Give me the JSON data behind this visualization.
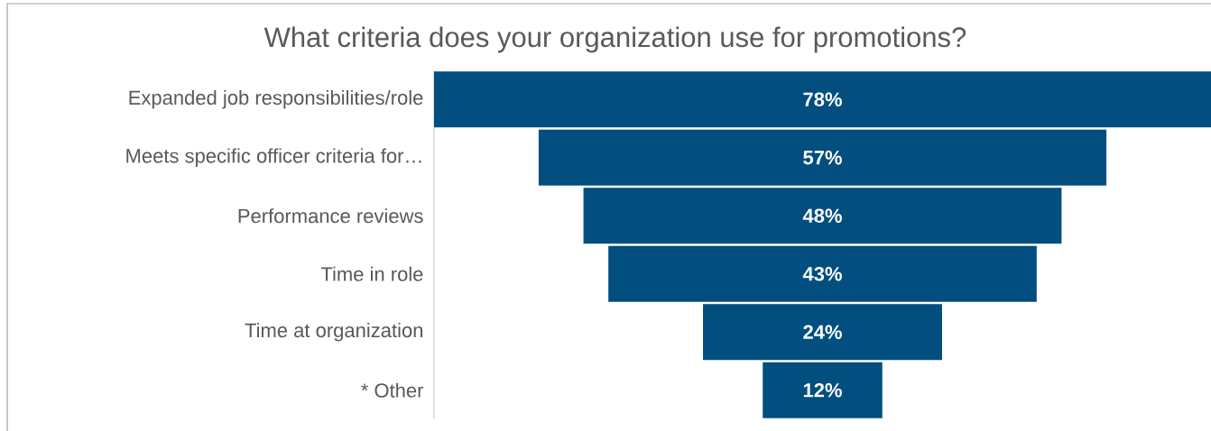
{
  "chart_data": {
    "type": "other",
    "title": "What criteria does your organization use for promotions?",
    "categories": [
      "Expanded job responsibilities/role",
      "Meets specific officer criteria for…",
      "Performance reviews",
      "Time in role",
      "Time at organization",
      "*  Other"
    ],
    "values": [
      78,
      57,
      48,
      43,
      24,
      12
    ],
    "value_labels": [
      "78%",
      "57%",
      "48%",
      "43%",
      "24%",
      "12%"
    ],
    "color": "#024e7f"
  }
}
